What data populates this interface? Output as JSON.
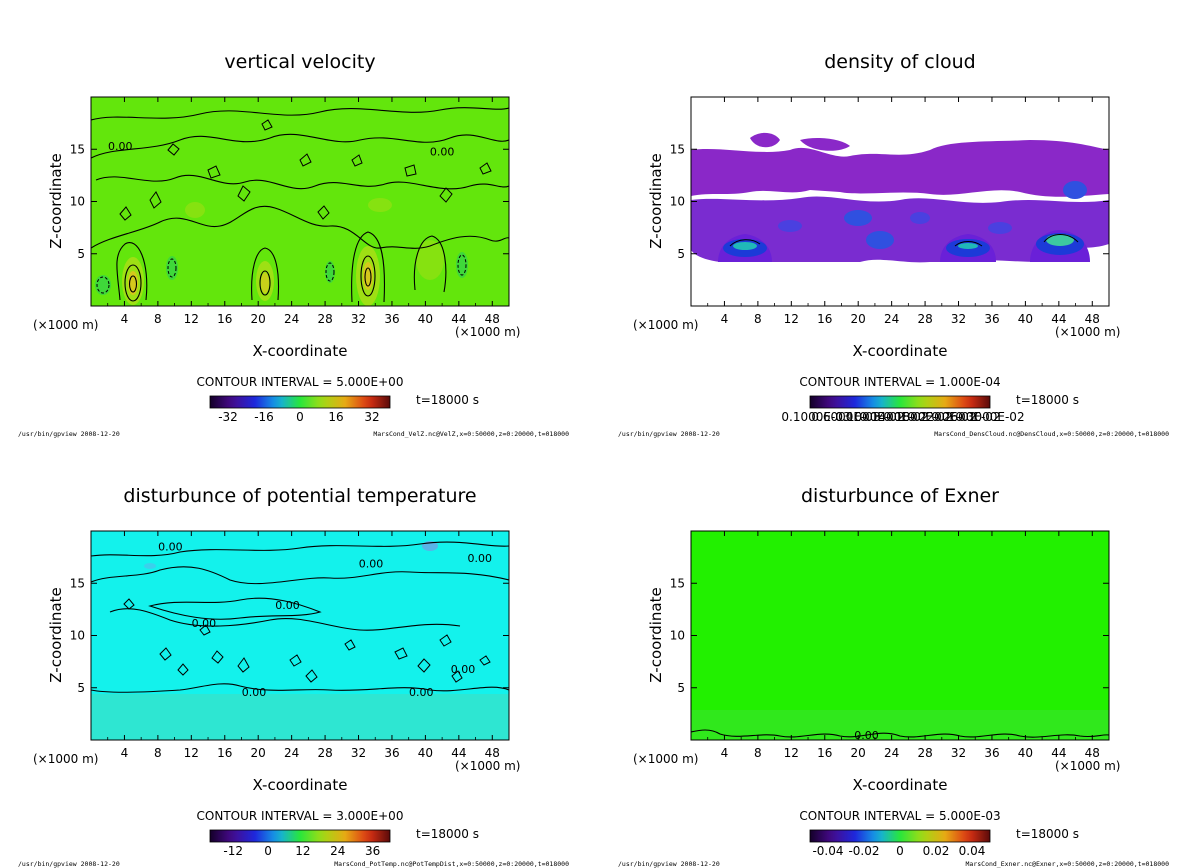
{
  "x_unit_label": "(×1000 m)",
  "x_axis_label": "X-coordinate",
  "y_axis_label": "Z-coordinate",
  "time_label": "t=18000 s",
  "footer_left": "/usr/bin/gpview   2008-12-20",
  "chart_data": [
    {
      "type": "heatmap",
      "title": "vertical velocity",
      "xlabel": "X-coordinate",
      "ylabel": "Z-coordinate",
      "xlim": [
        0,
        50
      ],
      "ylim": [
        0,
        20
      ],
      "x_ticks": [
        4,
        8,
        12,
        16,
        20,
        24,
        28,
        32,
        36,
        40,
        44,
        48
      ],
      "y_ticks": [
        5,
        10,
        15
      ],
      "contour_interval": "CONTOUR INTERVAL = 5.000E+00",
      "contour_labels": [
        {
          "text": "0.00",
          "x": 3.5,
          "y": 15.3
        },
        {
          "text": "0.00",
          "x": 42,
          "y": 14.8
        }
      ],
      "colorbar_ticks": [
        "-32",
        "-16",
        "0",
        "16",
        "32"
      ],
      "colorbar_range": [
        -40,
        40
      ],
      "field_color": "#63e60c",
      "footer_file": "MarsCond_VelZ.nc@VelZ,x=0:50000,z=0:20000,t=018000"
    },
    {
      "type": "heatmap",
      "title": "density of cloud",
      "xlabel": "X-coordinate",
      "ylabel": "Z-coordinate",
      "xlim": [
        0,
        50
      ],
      "ylim": [
        0,
        20
      ],
      "x_ticks": [
        4,
        8,
        12,
        16,
        20,
        24,
        28,
        32,
        36,
        40,
        44,
        48
      ],
      "y_ticks": [
        5,
        10,
        15
      ],
      "contour_interval": "CONTOUR INTERVAL = 1.000E-04",
      "contour_labels": [],
      "colorbar_ticks": [
        "0.1000E-03",
        "0.6000E-03",
        "0.1000E-02",
        "0.1400E-02",
        "0.1800E-02",
        "0.2200E-02",
        "0.2600E-02",
        "0.3000E-02"
      ],
      "colorbar_range": [
        0,
        0.003
      ],
      "field_color": "#8a28c8",
      "footer_file": "MarsCond_DensCloud.nc@DensCloud,x=0:50000,z=0:20000,t=018000"
    },
    {
      "type": "heatmap",
      "title": "disturbunce of potential temperature",
      "xlabel": "X-coordinate",
      "ylabel": "Z-coordinate",
      "xlim": [
        0,
        50
      ],
      "ylim": [
        0,
        20
      ],
      "x_ticks": [
        4,
        8,
        12,
        16,
        20,
        24,
        28,
        32,
        36,
        40,
        44,
        48
      ],
      "y_ticks": [
        5,
        10,
        15
      ],
      "contour_interval": "CONTOUR INTERVAL = 3.000E+00",
      "contour_labels": [
        {
          "text": "0.00",
          "x": 9.5,
          "y": 18.5
        },
        {
          "text": "0.00",
          "x": 33.5,
          "y": 16.9
        },
        {
          "text": "0.00",
          "x": 46.5,
          "y": 17.4
        },
        {
          "text": "0.00",
          "x": 23.5,
          "y": 12.9
        },
        {
          "text": "0.00",
          "x": 13.5,
          "y": 11.2
        },
        {
          "text": "0.00",
          "x": 44.5,
          "y": 6.8
        },
        {
          "text": "0.00",
          "x": 19.5,
          "y": 4.6
        },
        {
          "text": "0.00",
          "x": 39.5,
          "y": 4.6
        }
      ],
      "colorbar_ticks": [
        "-12",
        "0",
        "12",
        "24",
        "36"
      ],
      "colorbar_range": [
        -20,
        42
      ],
      "field_color": "#13f2ec",
      "footer_file": "MarsCond_PotTemp.nc@PotTempDist,x=0:50000,z=0:20000,t=018000"
    },
    {
      "type": "heatmap",
      "title": "disturbunce of Exner",
      "xlabel": "X-coordinate",
      "ylabel": "Z-coordinate",
      "xlim": [
        0,
        50
      ],
      "ylim": [
        0,
        20
      ],
      "x_ticks": [
        4,
        8,
        12,
        16,
        20,
        24,
        28,
        32,
        36,
        40,
        44,
        48
      ],
      "y_ticks": [
        5,
        10,
        15
      ],
      "contour_interval": "CONTOUR INTERVAL = 5.000E-03",
      "contour_labels": [
        {
          "text": "0.00",
          "x": 21,
          "y": 0.5
        }
      ],
      "colorbar_ticks": [
        "-0.04",
        "-0.02",
        "0",
        "0.02",
        "0.04"
      ],
      "colorbar_range": [
        -0.05,
        0.05
      ],
      "field_color": "#22f000",
      "footer_file": "MarsCond_Exner.nc@Exner,x=0:50000,z=0:20000,t=018000"
    }
  ]
}
